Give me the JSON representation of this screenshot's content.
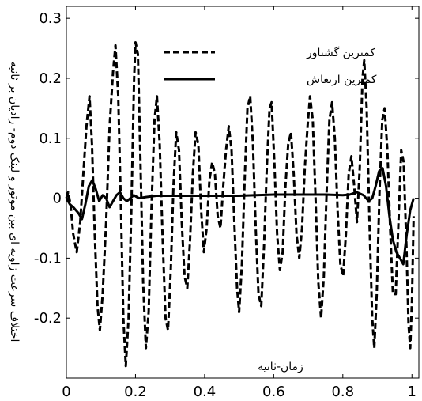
{
  "chart_data": {
    "type": "line",
    "xlabel": "زمان-ثانیه",
    "ylabel": "اختلاف سرعت زاویه ای بین  موتور و لینک دوم- رادیان بر ثانیه",
    "xlim": [
      0,
      1.02
    ],
    "ylim": [
      -0.3,
      0.32
    ],
    "x_ticks": [
      "0",
      "0.2",
      "0.4",
      "0.6",
      "0.8",
      "1"
    ],
    "x_tick_values": [
      0,
      0.2,
      0.4,
      0.6,
      0.8,
      1
    ],
    "y_ticks": [
      "0.3",
      "0.2",
      "0.1",
      "0",
      "-0.1",
      "-0.2"
    ],
    "y_tick_values": [
      0.3,
      0.2,
      0.1,
      0,
      -0.1,
      -0.2
    ],
    "grid": false,
    "legend_position": "top-center",
    "series": [
      {
        "name": "کمترین گشتاور",
        "style": "dashed",
        "color": "#000000",
        "points": [
          [
            0,
            0
          ],
          [
            0.005,
            0.01
          ],
          [
            0.012,
            -0.01
          ],
          [
            0.02,
            -0.06
          ],
          [
            0.03,
            -0.09
          ],
          [
            0.04,
            -0.04
          ],
          [
            0.05,
            0.05
          ],
          [
            0.058,
            0.12
          ],
          [
            0.067,
            0.17
          ],
          [
            0.074,
            0.09
          ],
          [
            0.082,
            -0.06
          ],
          [
            0.09,
            -0.18
          ],
          [
            0.097,
            -0.22
          ],
          [
            0.105,
            -0.16
          ],
          [
            0.115,
            -0.04
          ],
          [
            0.125,
            0.12
          ],
          [
            0.135,
            0.21
          ],
          [
            0.142,
            0.255
          ],
          [
            0.15,
            0.17
          ],
          [
            0.158,
            -0.02
          ],
          [
            0.165,
            -0.2
          ],
          [
            0.172,
            -0.28
          ],
          [
            0.18,
            -0.2
          ],
          [
            0.188,
            -0.02
          ],
          [
            0.196,
            0.2
          ],
          [
            0.2,
            0.26
          ],
          [
            0.207,
            0.24
          ],
          [
            0.214,
            0.07
          ],
          [
            0.222,
            -0.14
          ],
          [
            0.23,
            -0.25
          ],
          [
            0.238,
            -0.19
          ],
          [
            0.246,
            -0.02
          ],
          [
            0.255,
            0.13
          ],
          [
            0.262,
            0.17
          ],
          [
            0.27,
            0.09
          ],
          [
            0.278,
            -0.06
          ],
          [
            0.287,
            -0.2
          ],
          [
            0.294,
            -0.22
          ],
          [
            0.302,
            -0.12
          ],
          [
            0.31,
            0.02
          ],
          [
            0.318,
            0.11
          ],
          [
            0.326,
            0.08
          ],
          [
            0.334,
            -0.04
          ],
          [
            0.342,
            -0.13
          ],
          [
            0.35,
            -0.15
          ],
          [
            0.358,
            -0.07
          ],
          [
            0.366,
            0.04
          ],
          [
            0.374,
            0.11
          ],
          [
            0.382,
            0.09
          ],
          [
            0.39,
            -0.02
          ],
          [
            0.398,
            -0.09
          ],
          [
            0.406,
            -0.05
          ],
          [
            0.414,
            0.03
          ],
          [
            0.422,
            0.06
          ],
          [
            0.43,
            0.04
          ],
          [
            0.438,
            -0.03
          ],
          [
            0.446,
            -0.05
          ],
          [
            0.454,
            0.02
          ],
          [
            0.462,
            0.08
          ],
          [
            0.47,
            0.12
          ],
          [
            0.478,
            0.08
          ],
          [
            0.486,
            -0.04
          ],
          [
            0.494,
            -0.15
          ],
          [
            0.5,
            -0.19
          ],
          [
            0.508,
            -0.11
          ],
          [
            0.516,
            0.03
          ],
          [
            0.524,
            0.15
          ],
          [
            0.532,
            0.17
          ],
          [
            0.54,
            0.09
          ],
          [
            0.548,
            -0.05
          ],
          [
            0.556,
            -0.16
          ],
          [
            0.564,
            -0.18
          ],
          [
            0.572,
            -0.08
          ],
          [
            0.58,
            0.05
          ],
          [
            0.588,
            0.15
          ],
          [
            0.594,
            0.16
          ],
          [
            0.602,
            0.06
          ],
          [
            0.61,
            -0.06
          ],
          [
            0.618,
            -0.12
          ],
          [
            0.626,
            -0.09
          ],
          [
            0.634,
            0.02
          ],
          [
            0.642,
            0.09
          ],
          [
            0.65,
            0.11
          ],
          [
            0.658,
            0.04
          ],
          [
            0.666,
            -0.06
          ],
          [
            0.674,
            -0.1
          ],
          [
            0.682,
            -0.05
          ],
          [
            0.69,
            0.05
          ],
          [
            0.698,
            0.12
          ],
          [
            0.705,
            0.17
          ],
          [
            0.713,
            0.13
          ],
          [
            0.721,
            0.0
          ],
          [
            0.729,
            -0.14
          ],
          [
            0.737,
            -0.2
          ],
          [
            0.745,
            -0.13
          ],
          [
            0.753,
            0.01
          ],
          [
            0.761,
            0.13
          ],
          [
            0.769,
            0.16
          ],
          [
            0.777,
            0.1
          ],
          [
            0.785,
            -0.02
          ],
          [
            0.793,
            -0.11
          ],
          [
            0.801,
            -0.13
          ],
          [
            0.809,
            -0.06
          ],
          [
            0.817,
            0.04
          ],
          [
            0.825,
            0.07
          ],
          [
            0.833,
            0.02
          ],
          [
            0.841,
            -0.04
          ],
          [
            0.849,
            0.05
          ],
          [
            0.857,
            0.2
          ],
          [
            0.862,
            0.23
          ],
          [
            0.869,
            0.15
          ],
          [
            0.877,
            -0.04
          ],
          [
            0.885,
            -0.2
          ],
          [
            0.891,
            -0.25
          ],
          [
            0.898,
            -0.16
          ],
          [
            0.906,
            0.01
          ],
          [
            0.914,
            0.13
          ],
          [
            0.921,
            0.15
          ],
          [
            0.929,
            0.08
          ],
          [
            0.937,
            -0.05
          ],
          [
            0.945,
            -0.16
          ],
          [
            0.953,
            -0.16
          ],
          [
            0.961,
            -0.04
          ],
          [
            0.969,
            0.08
          ],
          [
            0.976,
            0.06
          ],
          [
            0.984,
            -0.08
          ],
          [
            0.99,
            -0.21
          ],
          [
            0.995,
            -0.25
          ],
          [
            1.0,
            -0.17
          ],
          [
            1.005,
            -0.03
          ]
        ]
      },
      {
        "name": "کمترین ارتعاش",
        "style": "solid",
        "color": "#000000",
        "points": [
          [
            0,
            0.0
          ],
          [
            0.01,
            -0.01
          ],
          [
            0.02,
            -0.015
          ],
          [
            0.035,
            -0.025
          ],
          [
            0.045,
            -0.035
          ],
          [
            0.055,
            -0.01
          ],
          [
            0.065,
            0.02
          ],
          [
            0.075,
            0.03
          ],
          [
            0.085,
            0.015
          ],
          [
            0.095,
            -0.005
          ],
          [
            0.105,
            0.005
          ],
          [
            0.115,
            0.0
          ],
          [
            0.125,
            -0.015
          ],
          [
            0.135,
            -0.005
          ],
          [
            0.145,
            0.005
          ],
          [
            0.155,
            0.01
          ],
          [
            0.165,
            0.0
          ],
          [
            0.175,
            -0.005
          ],
          [
            0.185,
            0.0
          ],
          [
            0.195,
            0.005
          ],
          [
            0.21,
            0.0
          ],
          [
            0.23,
            0.002
          ],
          [
            0.26,
            0.004
          ],
          [
            0.3,
            0.004
          ],
          [
            0.35,
            0.004
          ],
          [
            0.4,
            0.004
          ],
          [
            0.45,
            0.004
          ],
          [
            0.5,
            0.004
          ],
          [
            0.55,
            0.005
          ],
          [
            0.6,
            0.006
          ],
          [
            0.65,
            0.006
          ],
          [
            0.7,
            0.006
          ],
          [
            0.75,
            0.006
          ],
          [
            0.8,
            0.005
          ],
          [
            0.82,
            0.006
          ],
          [
            0.84,
            0.01
          ],
          [
            0.86,
            0.005
          ],
          [
            0.875,
            -0.005
          ],
          [
            0.885,
            0.0
          ],
          [
            0.895,
            0.02
          ],
          [
            0.905,
            0.045
          ],
          [
            0.915,
            0.05
          ],
          [
            0.925,
            0.02
          ],
          [
            0.935,
            -0.03
          ],
          [
            0.945,
            -0.07
          ],
          [
            0.955,
            -0.09
          ],
          [
            0.965,
            -0.1
          ],
          [
            0.975,
            -0.11
          ],
          [
            0.985,
            -0.06
          ],
          [
            0.995,
            -0.02
          ],
          [
            1.005,
            0.0
          ]
        ]
      }
    ]
  }
}
